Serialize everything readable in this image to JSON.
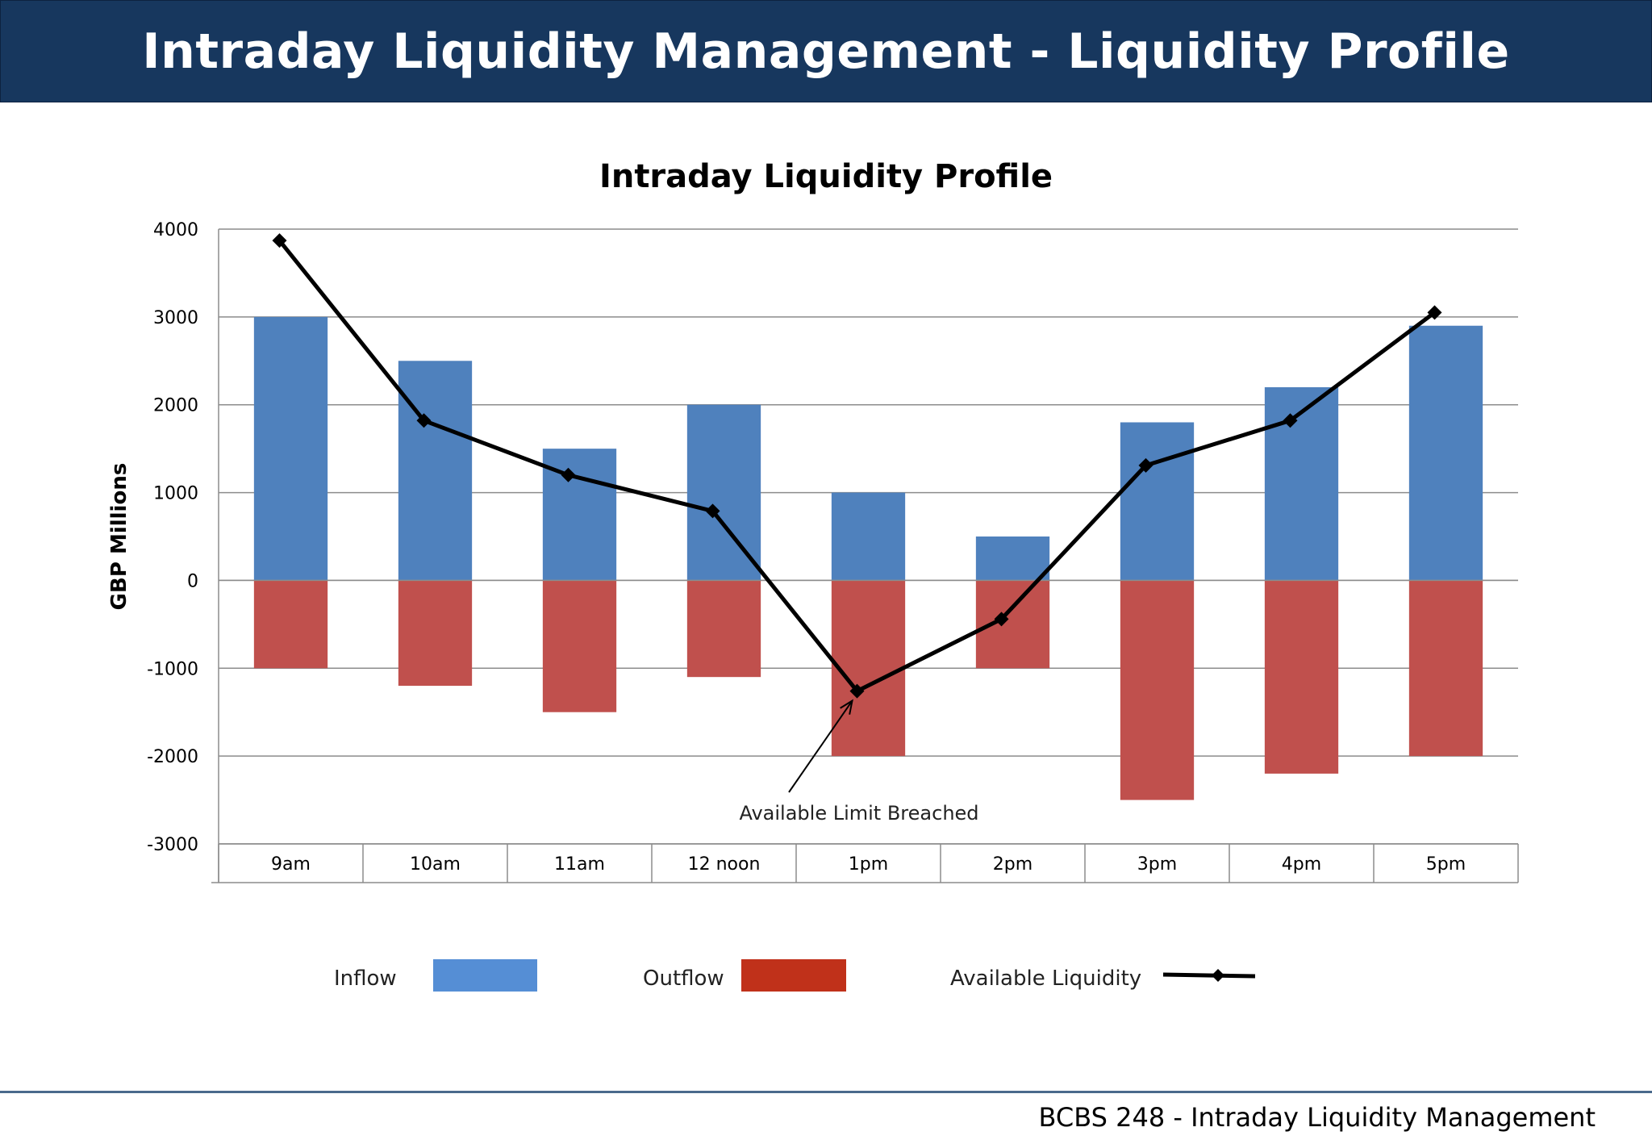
{
  "header": {
    "title": "Intraday Liquidity Management - Liquidity Profile"
  },
  "footer": {
    "text": "BCBS 248 - Intraday Liquidity Management"
  },
  "chart_data": {
    "type": "bar",
    "title": "Intraday Liquidity Profile",
    "ylabel": "GBP Millions",
    "xlabel": "",
    "ylim": [
      -3000,
      4000
    ],
    "yticks": [
      4000,
      3000,
      2000,
      1000,
      0,
      -1000,
      -2000,
      -3000
    ],
    "grid": true,
    "legend_position": "bottom",
    "categories": [
      "9am",
      "10am",
      "11am",
      "12 noon",
      "1pm",
      "2pm",
      "3pm",
      "4pm",
      "5pm"
    ],
    "series": [
      {
        "name": "Inflow",
        "kind": "bar",
        "color": "#4f81bd",
        "legend_color": "#558ed5",
        "values": [
          3000,
          2500,
          1500,
          2000,
          1000,
          500,
          1800,
          2200,
          2900
        ]
      },
      {
        "name": "Outflow",
        "kind": "bar",
        "color": "#c0504d",
        "legend_color": "#c0311a",
        "values": [
          -1000,
          -1200,
          -1500,
          -1100,
          -2000,
          -1000,
          -2500,
          -2200,
          -2000
        ]
      },
      {
        "name": "Available Liquidity",
        "kind": "line",
        "color": "#000000",
        "values": [
          3870,
          1820,
          1200,
          790,
          -1260,
          -440,
          1310,
          1820,
          3050
        ]
      }
    ],
    "annotations": [
      {
        "text": "Available Limit Breached",
        "category": "1pm",
        "value": -1260
      }
    ]
  }
}
